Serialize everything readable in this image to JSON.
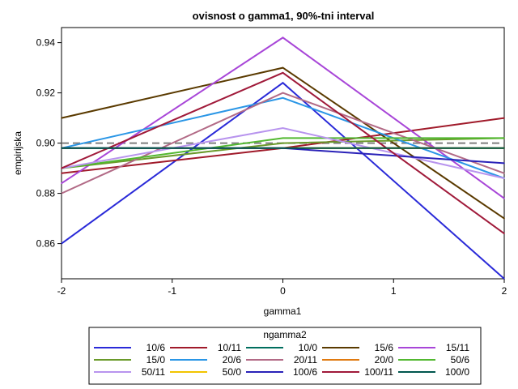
{
  "chart_data": {
    "type": "line",
    "title": "ovisnost o gamma1, 90%-tni interval",
    "xlabel": "gamma1",
    "ylabel": "empirijska",
    "x": [
      -2,
      0,
      2
    ],
    "xticks": [
      -2,
      -1,
      0,
      1,
      2
    ],
    "yticks": [
      0.86,
      0.88,
      0.9,
      0.92,
      0.94
    ],
    "xlim": [
      -2,
      2
    ],
    "ylim": [
      0.846,
      0.946
    ],
    "reference_line": {
      "y": 0.9,
      "style": "dashed",
      "color": "#7f7f7f"
    },
    "legend": {
      "title": "ngamma2",
      "placement": "bottom",
      "columns": 5
    },
    "series": [
      {
        "name": "10/6",
        "color": "#2a2ad8",
        "values": [
          0.86,
          0.924,
          0.846
        ]
      },
      {
        "name": "10/11",
        "color": "#a01a2a",
        "values": [
          0.888,
          0.898,
          0.91
        ]
      },
      {
        "name": "10/0",
        "color": "#006e5e",
        "values": [
          0.898,
          0.898,
          0.898
        ]
      },
      {
        "name": "15/6",
        "color": "#5a3a00",
        "values": [
          0.91,
          0.93,
          0.87
        ]
      },
      {
        "name": "15/11",
        "color": "#a846d8",
        "values": [
          0.884,
          0.942,
          0.878
        ]
      },
      {
        "name": "15/0",
        "color": "#6a9a2a",
        "values": [
          0.89,
          0.9,
          0.902
        ]
      },
      {
        "name": "20/6",
        "color": "#2a96e6",
        "values": [
          0.898,
          0.918,
          0.886
        ]
      },
      {
        "name": "20/11",
        "color": "#b26a86",
        "values": [
          0.88,
          0.92,
          0.888
        ]
      },
      {
        "name": "20/0",
        "color": "#e07a10",
        "values": [
          0.898,
          0.898,
          0.898
        ]
      },
      {
        "name": "50/6",
        "color": "#52b830",
        "values": [
          0.89,
          0.902,
          0.902
        ]
      },
      {
        "name": "50/11",
        "color": "#b894ee",
        "values": [
          0.89,
          0.906,
          0.886
        ]
      },
      {
        "name": "50/0",
        "color": "#f2c400",
        "values": [
          0.898,
          0.898,
          0.898
        ]
      },
      {
        "name": "100/6",
        "color": "#2a22b8",
        "values": [
          0.898,
          0.898,
          0.892
        ]
      },
      {
        "name": "100/11",
        "color": "#a01a3a",
        "values": [
          0.89,
          0.928,
          0.864
        ]
      },
      {
        "name": "100/0",
        "color": "#00564e",
        "values": [
          0.898,
          0.898,
          0.898
        ]
      }
    ]
  }
}
